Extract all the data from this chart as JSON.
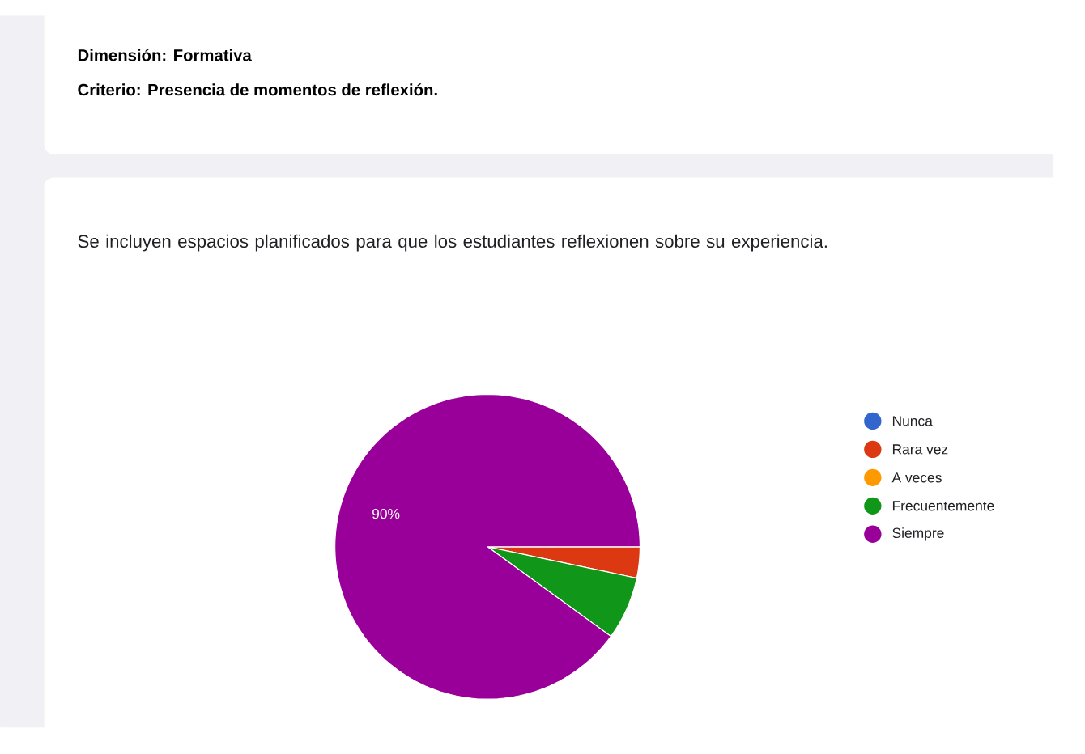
{
  "chart_data": {
    "type": "pie",
    "title": "Se incluyen espacios planificados para que los estudiantes reflexionen sobre su experiencia.",
    "annotations": [
      "Dimensión: Formativa",
      "Criterio: Presencia de momentos de reflexión."
    ],
    "categories": [
      "Nunca",
      "Rara vez",
      "A veces",
      "Frecuentemente",
      "Siempre"
    ],
    "values": [
      0,
      3.3,
      0,
      6.7,
      90
    ],
    "colors": [
      "#3366cc",
      "#dc3912",
      "#ff9900",
      "#109618",
      "#990099"
    ],
    "value_labels": [
      null,
      null,
      null,
      null,
      "90%"
    ],
    "legend": "right"
  }
}
